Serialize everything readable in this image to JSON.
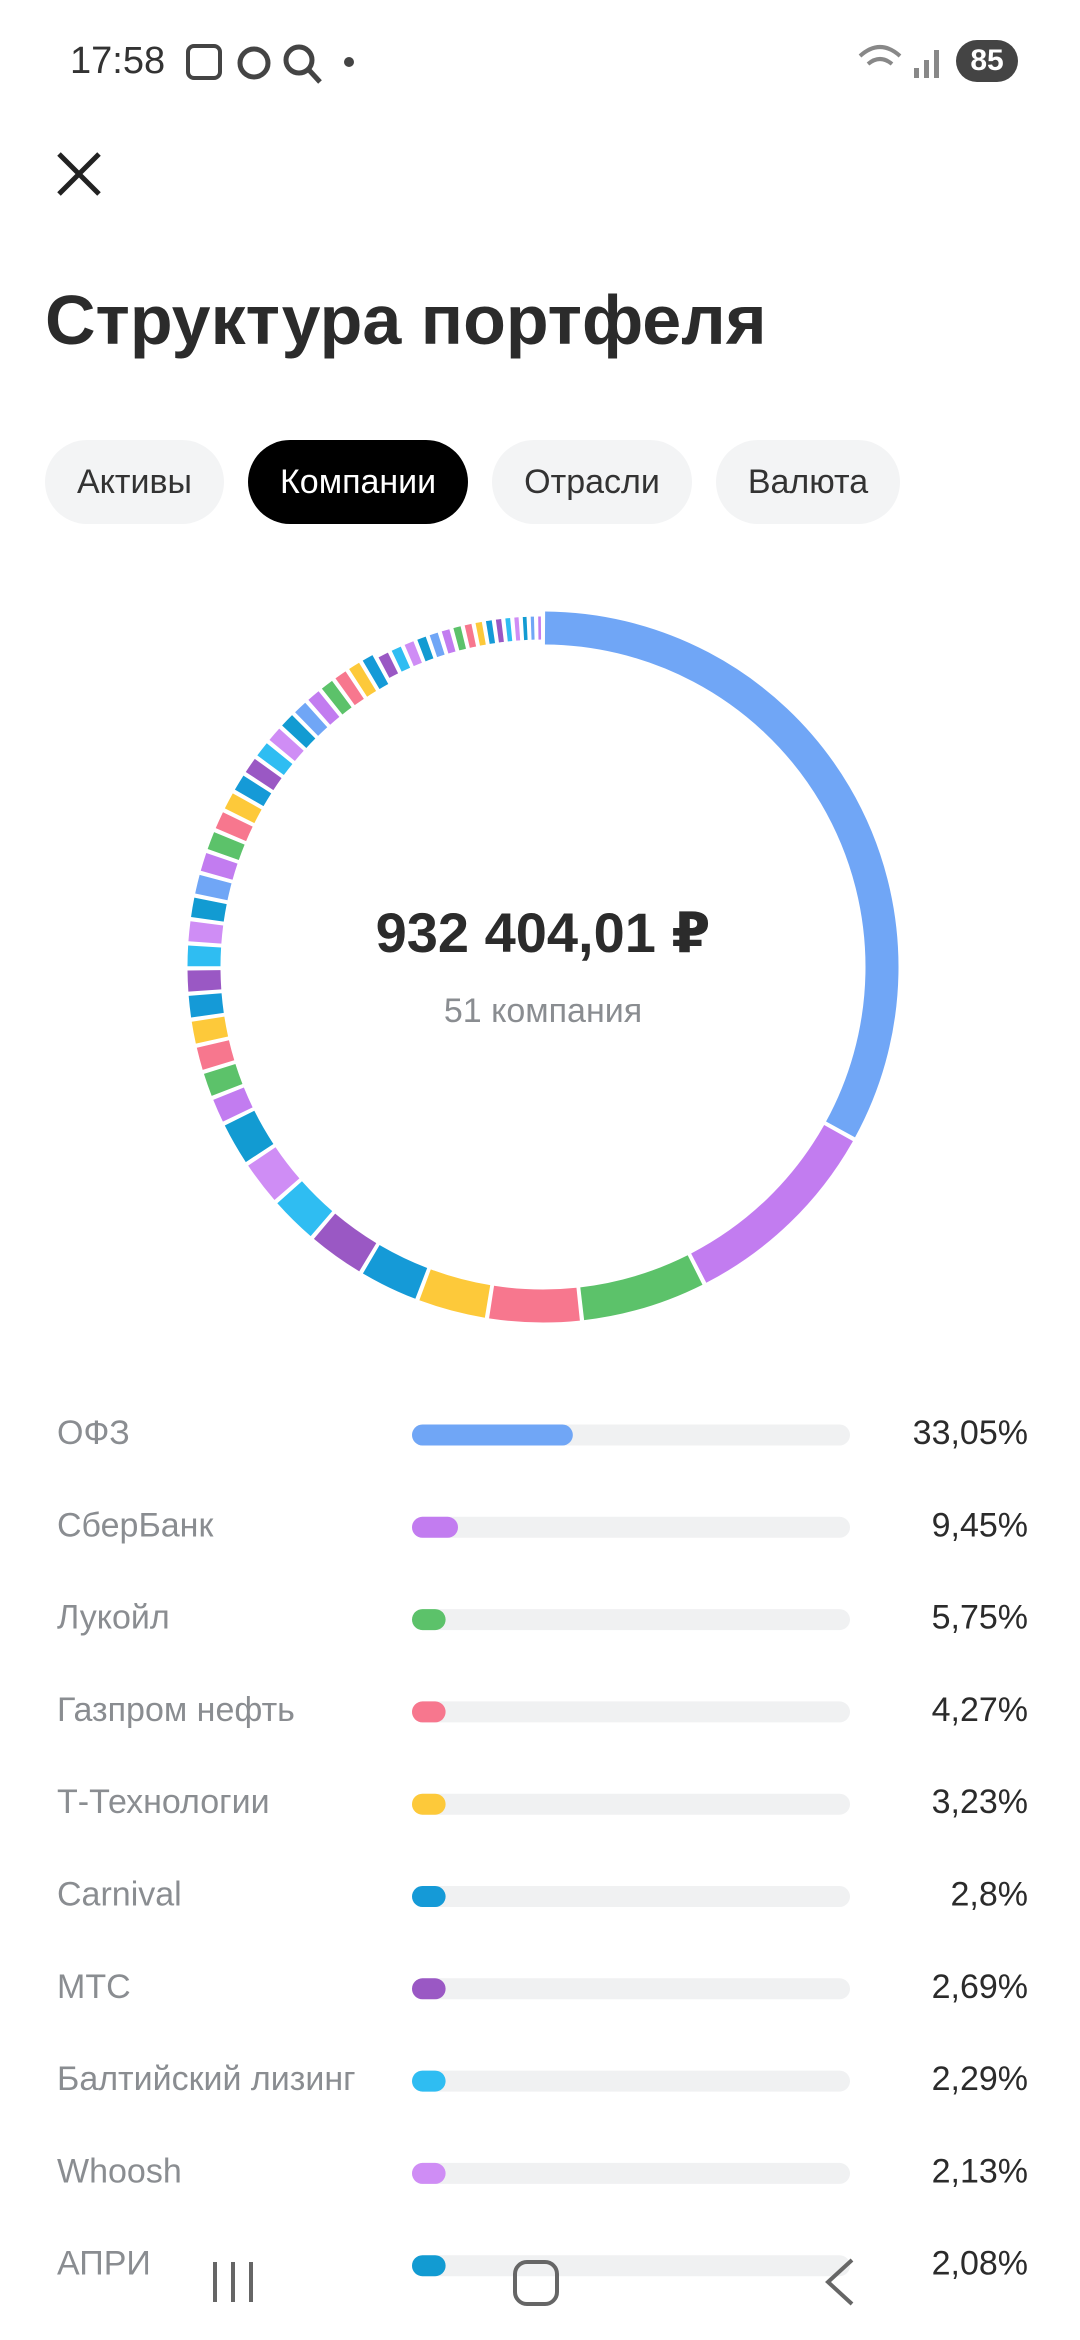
{
  "status_bar": {
    "time": "17:58",
    "battery": "85"
  },
  "header": {
    "title": "Структура портфеля"
  },
  "tabs": [
    {
      "label": "Активы",
      "selected": false
    },
    {
      "label": "Компании",
      "selected": true
    },
    {
      "label": "Отрасли",
      "selected": false
    },
    {
      "label": "Валюта",
      "selected": false
    }
  ],
  "summary": {
    "total": "932 404,01 ₽",
    "count": "51 компания"
  },
  "companies": [
    {
      "name": "ОФЗ",
      "share": 33.05,
      "share_label": "33,05%",
      "color": "#70a6f6"
    },
    {
      "name": "СберБанк",
      "share": 9.45,
      "share_label": "9,45%",
      "color": "#c27cf0"
    },
    {
      "name": "Лукойл",
      "share": 5.75,
      "share_label": "5,75%",
      "color": "#5cc26a"
    },
    {
      "name": "Газпром нефть",
      "share": 4.27,
      "share_label": "4,27%",
      "color": "#f7778e"
    },
    {
      "name": "Т-Технологии",
      "share": 3.23,
      "share_label": "3,23%",
      "color": "#fdc93a"
    },
    {
      "name": "Carnival",
      "share": 2.8,
      "share_label": "2,8%",
      "color": "#159ad7"
    },
    {
      "name": "МТС",
      "share": 2.69,
      "share_label": "2,69%",
      "color": "#9a58c4"
    },
    {
      "name": "Балтийский лизинг",
      "share": 2.29,
      "share_label": "2,29%",
      "color": "#2fbdf2"
    },
    {
      "name": "Whoosh",
      "share": 2.13,
      "share_label": "2,13%",
      "color": "#cf8df5"
    },
    {
      "name": "АПРИ",
      "share": 2.08,
      "share_label": "2,08%",
      "color": "#129bd2"
    }
  ]
}
